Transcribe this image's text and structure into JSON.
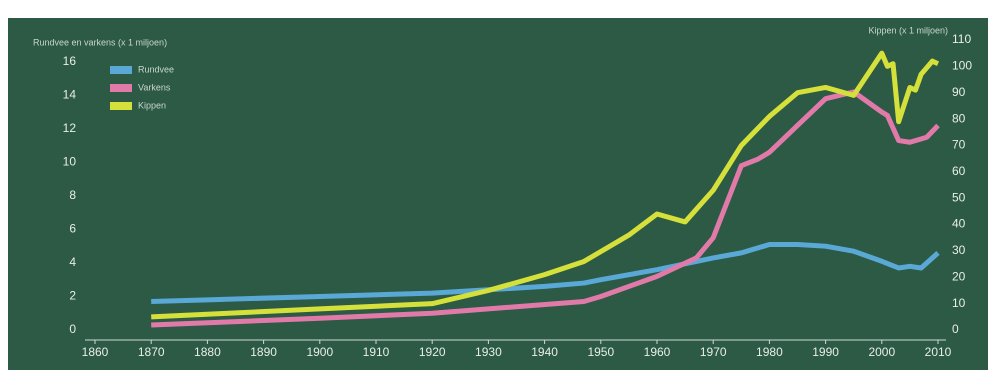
{
  "chart_data": {
    "type": "line",
    "y_label": "Rundvee en varkens (x 1 miljoen)",
    "y2_label": "Kippen (x 1 miljoen)",
    "xlim": [
      1860,
      2010
    ],
    "xticks": [
      1860,
      1870,
      1880,
      1890,
      1900,
      1910,
      1920,
      1930,
      1940,
      1950,
      1960,
      1970,
      1980,
      1990,
      2000,
      2010
    ],
    "ylim": [
      0,
      17.3
    ],
    "yticks": [
      0,
      2,
      4,
      6,
      8,
      10,
      12,
      14,
      16
    ],
    "y2lim": [
      0,
      110
    ],
    "y2ticks": [
      0,
      10,
      20,
      30,
      40,
      50,
      60,
      70,
      80,
      90,
      100,
      110
    ],
    "legend": "top-left",
    "series": [
      {
        "name": "Rundvee",
        "color": "#5aa8d6",
        "x": [
          1870,
          1880,
          1900,
          1920,
          1940,
          1947,
          1950,
          1960,
          1970,
          1975,
          1980,
          1985,
          1990,
          1995,
          2000,
          2003,
          2005,
          2007,
          2010
        ],
        "values": [
          1.7,
          1.8,
          2.0,
          2.2,
          2.6,
          2.8,
          3.0,
          3.6,
          4.3,
          4.6,
          5.1,
          5.1,
          5.0,
          4.7,
          4.1,
          3.7,
          3.8,
          3.7,
          4.6
        ]
      },
      {
        "name": "Varkens",
        "color": "#e27aa9",
        "x": [
          1870,
          1900,
          1920,
          1947,
          1950,
          1960,
          1967,
          1970,
          1975,
          1978,
          1980,
          1985,
          1990,
          1995,
          2000,
          2001,
          2003,
          2005,
          2008,
          2010
        ],
        "values": [
          0.3,
          0.7,
          1.0,
          1.7,
          2.0,
          3.2,
          4.3,
          5.5,
          9.8,
          10.2,
          10.6,
          12.2,
          13.8,
          14.2,
          13.0,
          12.8,
          11.3,
          11.2,
          11.5,
          12.2
        ]
      },
      {
        "name": "Kippen",
        "color": "#d6e03a",
        "axis": "y2",
        "x": [
          1870,
          1900,
          1920,
          1930,
          1940,
          1947,
          1955,
          1960,
          1965,
          1970,
          1975,
          1980,
          1985,
          1990,
          1995,
          2000,
          2001,
          2002,
          2003,
          2005,
          2006,
          2007,
          2009,
          2010
        ],
        "values": [
          5,
          8,
          10,
          15,
          21,
          26,
          36,
          44,
          41,
          53,
          70,
          81,
          90,
          92,
          89,
          105,
          100,
          101,
          79,
          92,
          91,
          97,
          102,
          101
        ]
      }
    ]
  }
}
